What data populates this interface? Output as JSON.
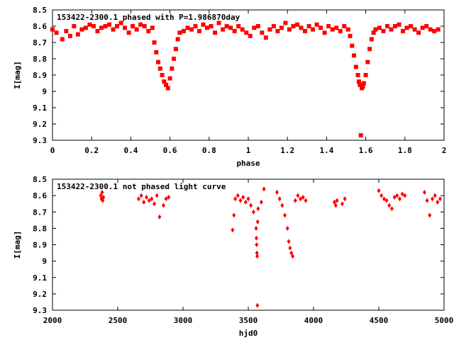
{
  "chart_data": [
    {
      "type": "scatter",
      "title": "153422-2300.1 phased with P=1.986870day",
      "xlabel": "phase",
      "ylabel": "I[mag]",
      "xlim": [
        0,
        2
      ],
      "ylim": [
        8.5,
        9.3
      ],
      "y_inverted": true,
      "grid": false,
      "legend": "none",
      "marker_color": "#ff0000",
      "marker": "filled-square",
      "xticks": [
        "0",
        "0.2",
        "0.4",
        "0.6",
        "0.8",
        "1",
        "1.2",
        "1.4",
        "1.6",
        "1.8",
        "2"
      ],
      "yticks": [
        "8.5",
        "8.6",
        "8.7",
        "8.8",
        "8.9",
        "9",
        "9.1",
        "9.2",
        "9.3"
      ],
      "xtick_values": [
        0,
        0.2,
        0.4,
        0.6,
        0.8,
        1.0,
        1.2,
        1.4,
        1.6,
        1.8,
        2.0
      ],
      "ytick_values": [
        8.5,
        8.6,
        8.7,
        8.8,
        8.9,
        9.0,
        9.1,
        9.2,
        9.3
      ],
      "series": [
        {
          "x": [
            0.0,
            0.02,
            0.05,
            0.07,
            0.09,
            0.11,
            0.13,
            0.15,
            0.17,
            0.19,
            0.21,
            0.23,
            0.25,
            0.27,
            0.29,
            0.31,
            0.33,
            0.35,
            0.37,
            0.39,
            0.41,
            0.43,
            0.45,
            0.47,
            0.49,
            0.51,
            0.52,
            0.53,
            0.54,
            0.55,
            0.56,
            0.57,
            0.58,
            0.59,
            0.6,
            0.61,
            0.62,
            0.63,
            0.64,
            0.65,
            0.67,
            0.69,
            0.71,
            0.73,
            0.75,
            0.77,
            0.79,
            0.81,
            0.83,
            0.85,
            0.87,
            0.89,
            0.91,
            0.93,
            0.95,
            0.97,
            0.99,
            1.01,
            1.03,
            1.05,
            1.07,
            1.09,
            1.11,
            1.13,
            1.15,
            1.17,
            1.19,
            1.21,
            1.23,
            1.25,
            1.27,
            1.29,
            1.31,
            1.33,
            1.35,
            1.37,
            1.39,
            1.41,
            1.43,
            1.45,
            1.47,
            1.49,
            1.51,
            1.52,
            1.53,
            1.54,
            1.55,
            1.56,
            1.565,
            1.57,
            1.575,
            1.58,
            1.585,
            1.59,
            1.6,
            1.61,
            1.62,
            1.63,
            1.64,
            1.65,
            1.67,
            1.69,
            1.71,
            1.73,
            1.75,
            1.77,
            1.79,
            1.81,
            1.83,
            1.85,
            1.87,
            1.89,
            1.91,
            1.93,
            1.95,
            1.97
          ],
          "y": [
            8.62,
            8.64,
            8.68,
            8.63,
            8.66,
            8.6,
            8.65,
            8.62,
            8.61,
            8.59,
            8.6,
            8.63,
            8.61,
            8.6,
            8.59,
            8.62,
            8.6,
            8.58,
            8.61,
            8.64,
            8.6,
            8.62,
            8.59,
            8.6,
            8.63,
            8.61,
            8.7,
            8.76,
            8.82,
            8.86,
            8.9,
            8.94,
            8.96,
            8.98,
            8.92,
            8.86,
            8.8,
            8.74,
            8.68,
            8.64,
            8.63,
            8.61,
            8.62,
            8.6,
            8.63,
            8.59,
            8.61,
            8.6,
            8.64,
            8.58,
            8.62,
            8.6,
            8.61,
            8.63,
            8.6,
            8.62,
            8.64,
            8.66,
            8.61,
            8.6,
            8.64,
            8.67,
            8.62,
            8.6,
            8.63,
            8.61,
            8.58,
            8.62,
            8.6,
            8.59,
            8.61,
            8.63,
            8.6,
            8.62,
            8.59,
            8.61,
            8.64,
            8.6,
            8.62,
            8.61,
            8.63,
            8.6,
            8.62,
            8.66,
            8.72,
            8.78,
            8.85,
            8.9,
            8.94,
            8.96,
            9.27,
            8.98,
            8.97,
            8.95,
            8.9,
            8.82,
            8.74,
            8.68,
            8.64,
            8.62,
            8.61,
            8.63,
            8.6,
            8.62,
            8.6,
            8.59,
            8.63,
            8.61,
            8.6,
            8.62,
            8.64,
            8.61,
            8.6,
            8.62,
            8.63,
            8.62
          ]
        }
      ]
    },
    {
      "type": "scatter",
      "title": "153422-2300.1 not phased light curve",
      "xlabel": "hjd0",
      "ylabel": "I[mag]",
      "xlim": [
        2000,
        5000
      ],
      "ylim": [
        8.5,
        9.3
      ],
      "y_inverted": true,
      "grid": false,
      "legend": "none",
      "marker_color": "#ff0000",
      "marker": "filled-diamond",
      "xticks": [
        "2000",
        "2500",
        "3000",
        "3500",
        "4000",
        "4500",
        "5000"
      ],
      "yticks": [
        "8.5",
        "8.6",
        "8.7",
        "8.8",
        "8.9",
        "9",
        "9.1",
        "9.2",
        "9.3"
      ],
      "xtick_values": [
        2000,
        2500,
        3000,
        3500,
        4000,
        4500,
        5000
      ],
      "ytick_values": [
        8.5,
        8.6,
        8.7,
        8.8,
        8.9,
        9.0,
        9.1,
        9.2,
        9.3
      ],
      "series": [
        {
          "x": [
            2370,
            2375,
            2380,
            2385,
            2390,
            2660,
            2680,
            2700,
            2720,
            2740,
            2760,
            2780,
            2800,
            2820,
            2850,
            2870,
            2890,
            3380,
            3390,
            3400,
            3420,
            3440,
            3460,
            3480,
            3500,
            3520,
            3540,
            3560,
            3562,
            3564,
            3566,
            3568,
            3570,
            3572,
            3575,
            3600,
            3620,
            3720,
            3740,
            3760,
            3780,
            3800,
            3810,
            3820,
            3830,
            3840,
            3860,
            3880,
            3900,
            3920,
            3940,
            4160,
            4170,
            4180,
            4220,
            4240,
            4500,
            4520,
            4540,
            4560,
            4580,
            4600,
            4620,
            4640,
            4660,
            4680,
            4700,
            4850,
            4870,
            4890,
            4910,
            4930,
            4950,
            4970
          ],
          "y": [
            8.6,
            8.62,
            8.58,
            8.63,
            8.61,
            8.62,
            8.6,
            8.64,
            8.61,
            8.63,
            8.62,
            8.65,
            8.6,
            8.73,
            8.66,
            8.62,
            8.61,
            8.81,
            8.72,
            8.62,
            8.6,
            8.63,
            8.61,
            8.64,
            8.62,
            8.66,
            8.7,
            8.8,
            8.86,
            8.9,
            8.95,
            8.97,
            9.27,
            8.76,
            8.68,
            8.64,
            8.56,
            8.58,
            8.62,
            8.66,
            8.72,
            8.8,
            8.88,
            8.92,
            8.95,
            8.97,
            8.63,
            8.6,
            8.62,
            8.61,
            8.63,
            8.64,
            8.66,
            8.63,
            8.65,
            8.62,
            8.57,
            8.6,
            8.62,
            8.63,
            8.66,
            8.68,
            8.61,
            8.6,
            8.62,
            8.59,
            8.6,
            8.58,
            8.63,
            8.72,
            8.62,
            8.6,
            8.64,
            8.62
          ]
        }
      ]
    }
  ]
}
